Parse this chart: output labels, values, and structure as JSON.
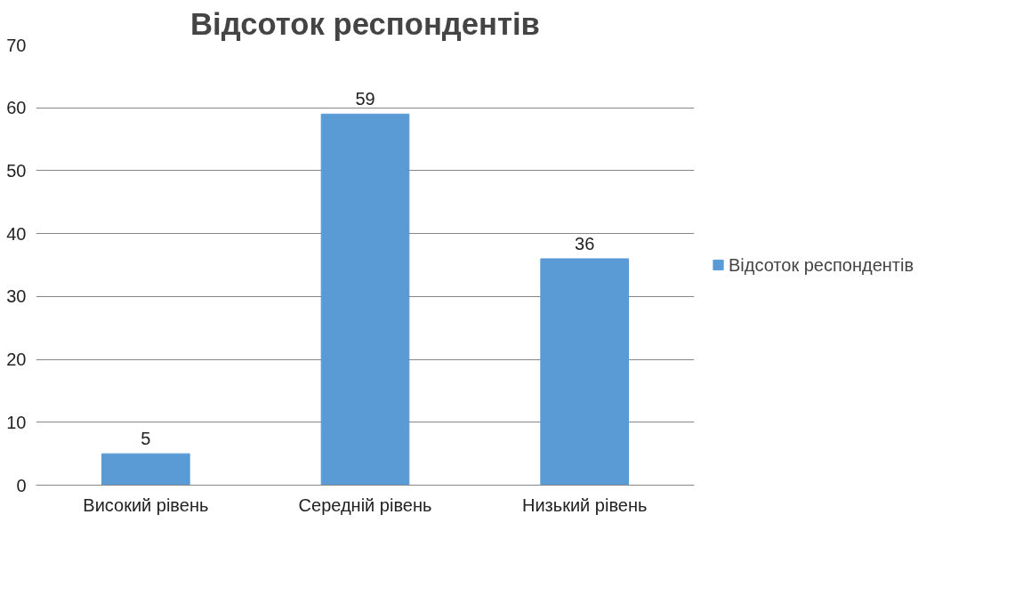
{
  "chart_data": {
    "type": "bar",
    "title": "Відсоток респондентів",
    "categories": [
      "Високий рівень",
      "Середній рівень",
      "Низький рівень"
    ],
    "series": [
      {
        "name": "Відсоток респондентів",
        "color": "#5b9bd5",
        "values": [
          5,
          59,
          36
        ]
      }
    ],
    "ylim": [
      0,
      70
    ],
    "yticks": [
      0,
      10,
      20,
      30,
      40,
      50,
      60,
      70
    ],
    "grid": "y",
    "legend": "right",
    "data_labels": true
  }
}
